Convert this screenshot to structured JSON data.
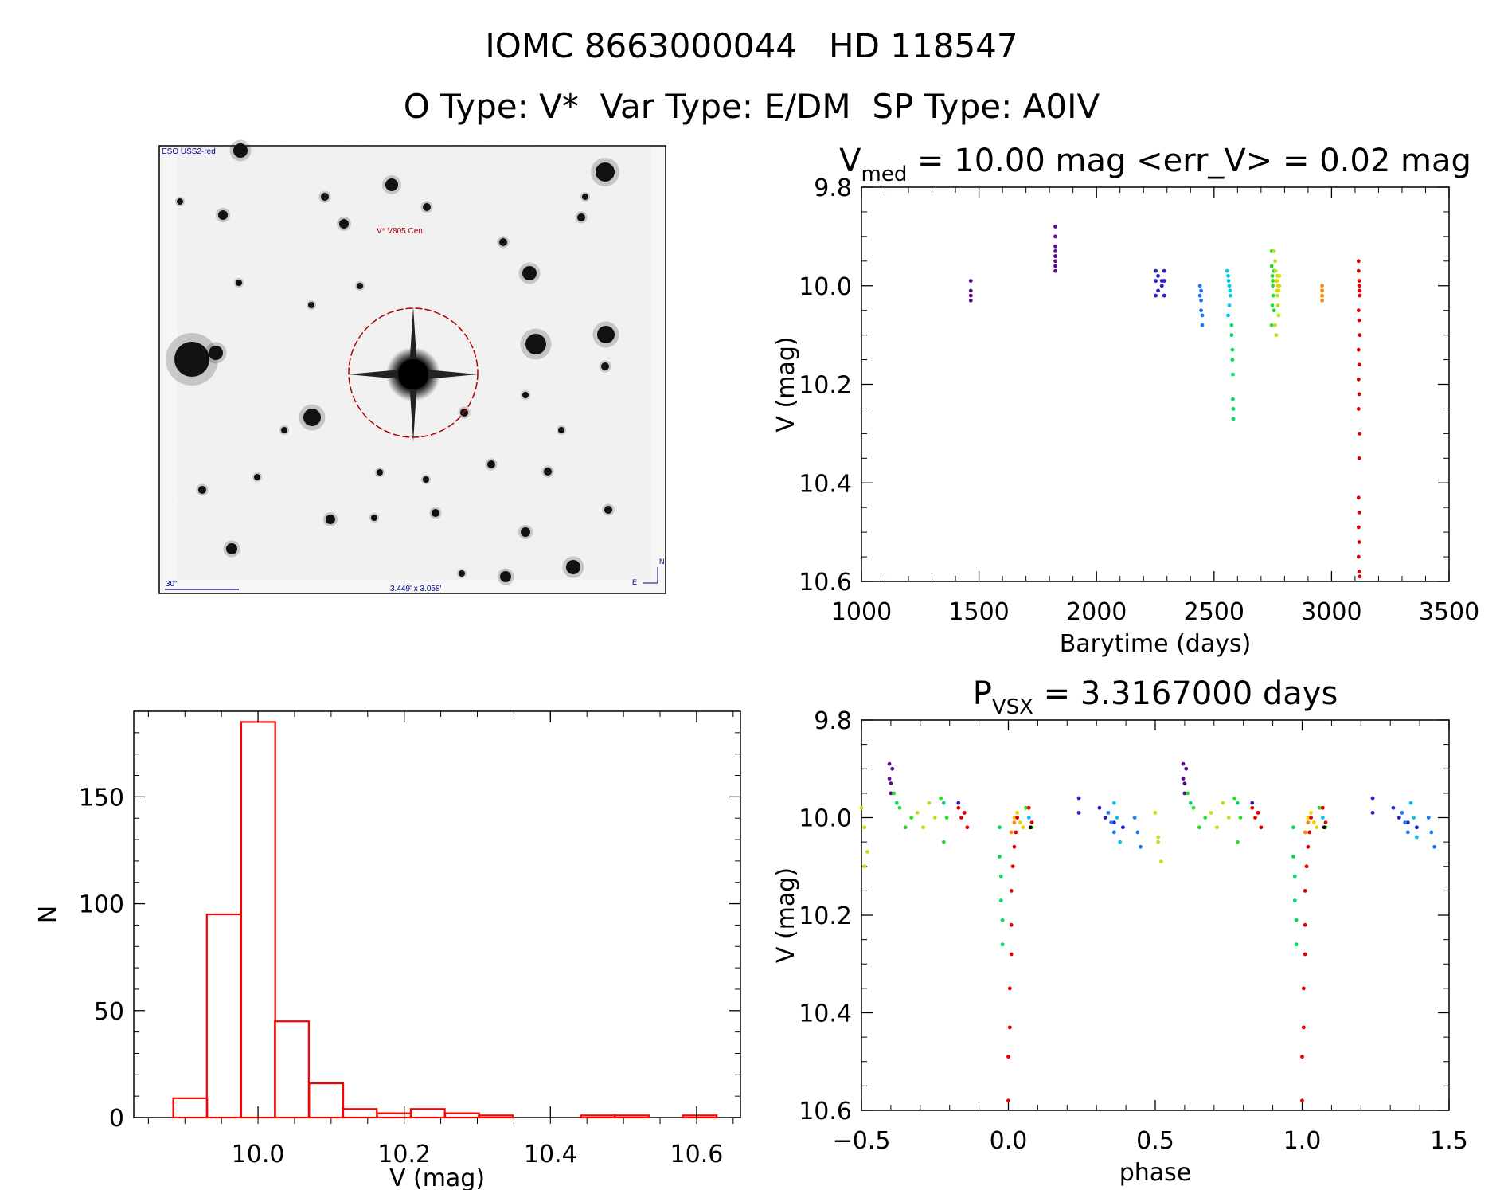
{
  "header": {
    "title": "IOMC 8663000044   HD 118547",
    "subtitle": "O Type: V*  Var Type: E/DM  SP Type: A0IV"
  },
  "finder": {
    "survey": "ESO USS2-red",
    "target_label": "V* V805 Cen",
    "scale_label": "30\"",
    "fov_label": "3.449' x 3.058'",
    "north_label": "N",
    "east_label": "E",
    "colors": {
      "frame": "#000000",
      "circle": "#b00000",
      "labels": "#00008b"
    }
  },
  "chart_data": [
    {
      "id": "lightcurve",
      "type": "scatter",
      "title_main": "V",
      "title_sub": "med",
      "title_rest": " = 10.00 mag <err_V> = 0.02 mag",
      "xlabel": "Barytime (days)",
      "ylabel": "V (mag)",
      "xlim": [
        1000,
        3500
      ],
      "ylim": [
        9.8,
        10.6
      ],
      "y_inverted": true,
      "xticks": [
        1000,
        1500,
        2000,
        2500,
        3000,
        3500
      ],
      "xtick_labels": [
        "1000",
        "1500",
        "2000",
        "2500",
        "3000",
        "3500"
      ],
      "yticks": [
        9.8,
        10.0,
        10.2,
        10.4,
        10.6
      ],
      "ytick_labels": [
        "9.8",
        "10.0",
        "10.2",
        "10.4",
        "10.6"
      ],
      "series": [
        {
          "color": "#5a0e8c",
          "x": [
            1465,
            1465,
            1465,
            1465
          ],
          "y": [
            9.99,
            10.01,
            10.02,
            10.03
          ]
        },
        {
          "color": "#5a0e8c",
          "x": [
            1825,
            1825,
            1825,
            1825,
            1825,
            1825,
            1825,
            1825,
            1825
          ],
          "y": [
            9.88,
            9.9,
            9.92,
            9.93,
            9.94,
            9.95,
            9.96,
            9.97,
            9.94
          ]
        },
        {
          "color": "#2a1ec8",
          "x": [
            2252,
            2252,
            2262,
            2262,
            2278,
            2278,
            2288,
            2288,
            2252,
            2288
          ],
          "y": [
            9.97,
            9.99,
            9.98,
            10.01,
            9.99,
            10.0,
            9.97,
            10.02,
            10.02,
            9.99
          ]
        },
        {
          "color": "#1e78ff",
          "x": [
            2440,
            2440,
            2445,
            2445,
            2450,
            2450,
            2445
          ],
          "y": [
            10.0,
            10.02,
            10.03,
            10.05,
            10.06,
            10.08,
            10.01
          ]
        },
        {
          "color": "#00c8e6",
          "x": [
            2555,
            2560,
            2562,
            2565,
            2568,
            2570,
            2560,
            2565
          ],
          "y": [
            9.97,
            9.98,
            9.99,
            10.0,
            10.01,
            10.02,
            10.06,
            10.04
          ]
        },
        {
          "color": "#00dc64",
          "x": [
            2575,
            2575,
            2578,
            2578,
            2580,
            2580,
            2582,
            2582
          ],
          "y": [
            10.08,
            10.1,
            10.13,
            10.15,
            10.18,
            10.23,
            10.25,
            10.27
          ]
        },
        {
          "color": "#28dc28",
          "x": [
            2745,
            2745,
            2748,
            2750,
            2752,
            2755,
            2745,
            2750,
            2755,
            2748
          ],
          "y": [
            9.93,
            9.96,
            9.98,
            10.0,
            10.02,
            10.05,
            10.08,
            9.99,
            9.97,
            10.04
          ]
        },
        {
          "color": "#b4e61e",
          "x": [
            2755,
            2760,
            2762,
            2765,
            2768,
            2770,
            2772,
            2775,
            2760,
            2765,
            2770,
            2778
          ],
          "y": [
            9.93,
            9.95,
            9.97,
            9.99,
            10.01,
            10.02,
            10.04,
            10.06,
            10.08,
            10.1,
            9.98,
            10.0
          ]
        },
        {
          "color": "#f0d200",
          "x": [
            2770,
            2772,
            2775,
            2778
          ],
          "y": [
            9.99,
            10.0,
            10.01,
            9.98
          ]
        },
        {
          "color": "#ff8c00",
          "x": [
            2960,
            2960,
            2960,
            2960
          ],
          "y": [
            10.01,
            10.02,
            10.03,
            10.0
          ]
        },
        {
          "color": "#e60000",
          "x": [
            3115,
            3115,
            3118,
            3118,
            3120,
            3120,
            3115,
            3118,
            3120,
            3115,
            3118,
            3115,
            3118,
            3115,
            3120,
            3118,
            3115,
            3118,
            3115,
            3118,
            3115,
            3118,
            3120
          ],
          "y": [
            9.95,
            9.97,
            9.99,
            10.0,
            10.01,
            10.02,
            10.05,
            10.07,
            10.1,
            10.13,
            10.16,
            10.19,
            10.22,
            10.25,
            10.3,
            10.35,
            10.43,
            10.46,
            10.49,
            10.52,
            10.55,
            10.58,
            10.59
          ]
        }
      ]
    },
    {
      "id": "phased",
      "type": "scatter",
      "title_main": "P",
      "title_sub": "VSX",
      "title_rest": " = 3.3167000 days",
      "xlabel": "phase",
      "ylabel": "V (mag)",
      "xlim": [
        -0.5,
        1.5
      ],
      "ylim": [
        9.8,
        10.6
      ],
      "y_inverted": true,
      "xticks": [
        -0.5,
        0.0,
        0.5,
        1.0,
        1.5
      ],
      "xtick_labels": [
        "−0.5",
        "0.0",
        "0.5",
        "1.0",
        "1.5"
      ],
      "yticks": [
        9.8,
        10.0,
        10.2,
        10.4,
        10.6
      ],
      "ytick_labels": [
        "9.8",
        "10.0",
        "10.2",
        "10.4",
        "10.6"
      ],
      "series": [
        {
          "color": "#5a0e8c",
          "x": [
            -0.405,
            -0.405,
            -0.4,
            -0.4,
            -0.395,
            0.595,
            0.595,
            0.6,
            0.6,
            0.605
          ],
          "y": [
            9.89,
            9.92,
            9.93,
            9.95,
            9.9,
            9.89,
            9.92,
            9.93,
            9.95,
            9.9
          ]
        },
        {
          "color": "#2a1ec8",
          "x": [
            -0.17,
            -0.15,
            0.24,
            0.24,
            0.31,
            0.33,
            0.36,
            0.39,
            0.83,
            0.85,
            1.24,
            1.24,
            1.31,
            1.33,
            1.36,
            1.39
          ],
          "y": [
            9.97,
            9.99,
            9.96,
            9.99,
            9.98,
            10.0,
            10.01,
            10.02,
            9.97,
            9.99,
            9.96,
            9.99,
            9.98,
            10.0,
            10.01,
            10.02
          ]
        },
        {
          "color": "#1e78ff",
          "x": [
            0.34,
            0.35,
            0.36,
            0.43,
            0.44,
            0.45,
            1.34,
            1.35,
            1.36,
            1.43,
            1.44,
            1.45
          ],
          "y": [
            9.99,
            10.01,
            10.03,
            10.0,
            10.03,
            10.06,
            9.99,
            10.01,
            10.03,
            10.0,
            10.03,
            10.06
          ]
        },
        {
          "color": "#00c8e6",
          "x": [
            0.36,
            0.37,
            0.38,
            1.37,
            1.38,
            1.39,
            0.07,
            1.07
          ],
          "y": [
            9.97,
            10.0,
            10.05,
            9.97,
            10.0,
            10.04,
            10.0,
            10.0
          ]
        },
        {
          "color": "#00dc64",
          "x": [
            -0.03,
            -0.03,
            -0.025,
            -0.025,
            -0.02,
            -0.02,
            -0.38,
            -0.22,
            0.62,
            0.78,
            0.97,
            0.97,
            0.975,
            0.975,
            0.98,
            0.98
          ],
          "y": [
            10.02,
            10.08,
            10.12,
            10.17,
            10.21,
            10.26,
            9.97,
            9.97,
            9.97,
            9.97,
            10.02,
            10.08,
            10.12,
            10.17,
            10.21,
            10.26
          ]
        },
        {
          "color": "#28dc28",
          "x": [
            -0.39,
            -0.37,
            -0.35,
            -0.33,
            -0.23,
            -0.21,
            -0.22,
            0.06,
            0.08,
            0.61,
            0.63,
            0.65,
            0.67,
            0.77,
            0.79,
            0.78,
            1.06,
            1.08
          ],
          "y": [
            9.95,
            9.98,
            10.02,
            10.0,
            9.96,
            10.0,
            10.05,
            9.98,
            10.02,
            9.95,
            9.98,
            10.02,
            10.0,
            9.96,
            10.0,
            10.05,
            9.98,
            10.02
          ]
        },
        {
          "color": "#b4e61e",
          "x": [
            -0.5,
            -0.49,
            -0.48,
            -0.31,
            -0.29,
            -0.27,
            -0.25,
            0.5,
            0.51,
            0.52,
            0.69,
            0.71,
            0.73,
            0.75,
            -0.49,
            0.51
          ],
          "y": [
            9.98,
            10.02,
            10.07,
            9.99,
            10.02,
            9.97,
            10.0,
            9.99,
            10.04,
            10.09,
            9.99,
            10.02,
            9.97,
            10.0,
            10.1,
            10.05
          ]
        },
        {
          "color": "#f0d200",
          "x": [
            0.02,
            0.03,
            0.04,
            0.05,
            1.02,
            1.03,
            1.04,
            1.05
          ],
          "y": [
            10.0,
            9.99,
            10.01,
            10.02,
            10.0,
            9.99,
            10.01,
            10.02
          ]
        },
        {
          "color": "#ff8c00",
          "x": [
            0.01,
            0.02,
            0.03,
            1.01,
            1.02,
            1.03
          ],
          "y": [
            10.03,
            10.01,
            10.0,
            10.03,
            10.01,
            10.0
          ]
        },
        {
          "color": "#e60000",
          "x": [
            -0.17,
            -0.16,
            -0.15,
            -0.14,
            0.0,
            0.0,
            0.005,
            0.005,
            0.01,
            0.01,
            0.01,
            0.015,
            0.02,
            0.025,
            0.03,
            0.07,
            0.08,
            0.83,
            0.84,
            0.85,
            0.86,
            1.0,
            1.0,
            1.005,
            1.005,
            1.01,
            1.01,
            1.01,
            1.015,
            1.02,
            1.025,
            1.03,
            1.07,
            1.08
          ],
          "y": [
            9.98,
            10.0,
            9.99,
            10.02,
            10.58,
            10.49,
            10.43,
            10.35,
            10.28,
            10.22,
            10.15,
            10.1,
            10.06,
            10.03,
            10.0,
            9.98,
            10.01,
            9.98,
            10.0,
            9.99,
            10.02,
            10.58,
            10.49,
            10.43,
            10.35,
            10.28,
            10.22,
            10.15,
            10.1,
            10.06,
            10.03,
            10.0,
            9.98,
            10.01
          ]
        },
        {
          "color": "#000000",
          "x": [
            0.075,
            1.075
          ],
          "y": [
            10.02,
            10.02
          ]
        }
      ]
    },
    {
      "id": "histogram",
      "type": "bar",
      "xlabel": "V (mag)",
      "ylabel": "N",
      "xlim": [
        9.83,
        10.66
      ],
      "ylim": [
        0,
        190
      ],
      "xticks": [
        10.0,
        10.2,
        10.4,
        10.6
      ],
      "xtick_labels": [
        "10.0",
        "10.2",
        "10.4",
        "10.6"
      ],
      "yticks": [
        0,
        50,
        100,
        150
      ],
      "ytick_labels": [
        "0",
        "50",
        "100",
        "150"
      ],
      "bin_width": 0.0465,
      "bin_starts": [
        9.884,
        9.93,
        9.977,
        10.023,
        10.07,
        10.116,
        10.163,
        10.209,
        10.256,
        10.302,
        10.349,
        10.395,
        10.442,
        10.488,
        10.535,
        10.581
      ],
      "values": [
        9,
        95,
        185,
        45,
        16,
        4,
        2,
        4,
        2,
        1,
        0,
        0,
        1,
        1,
        0,
        1
      ],
      "color": "#ff0000"
    }
  ]
}
